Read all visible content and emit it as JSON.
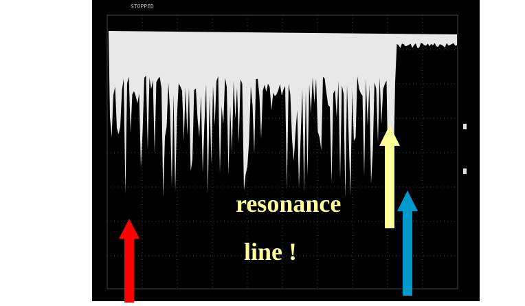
{
  "scope": {
    "status": "STOPPED"
  },
  "annotation": {
    "line1": "resonance",
    "line2": "line !"
  }
}
